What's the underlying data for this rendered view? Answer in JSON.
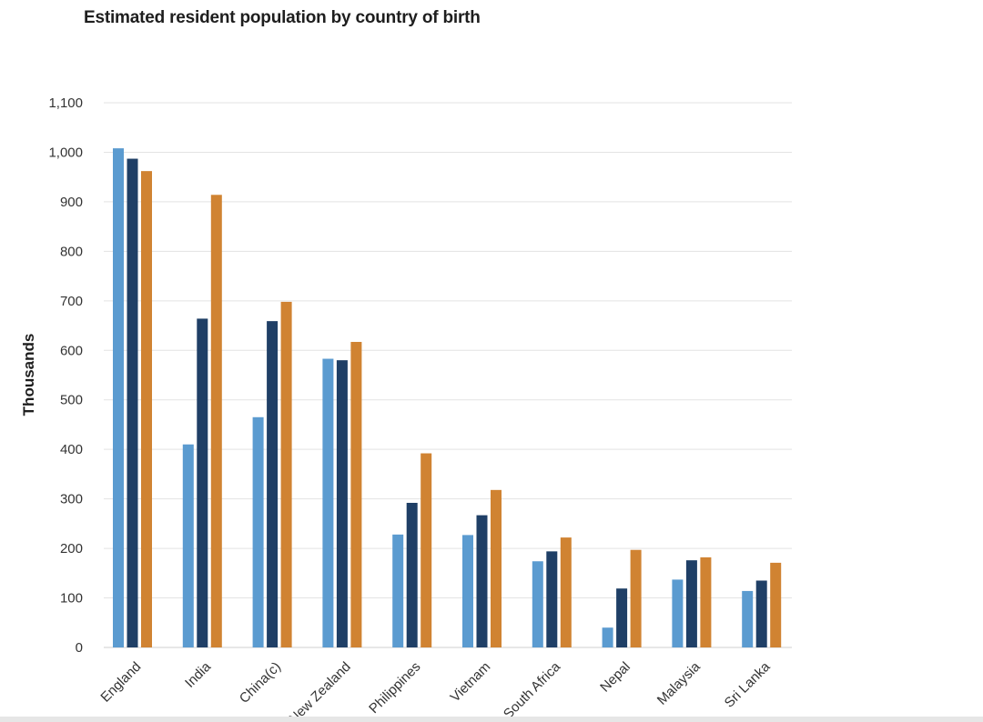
{
  "colors": {
    "series": [
      "#5b9bd0",
      "#1f3f66",
      "#d08332"
    ],
    "grid": "#e3e3e3"
  },
  "chart_data": {
    "type": "bar",
    "title": "Estimated resident population by country of birth",
    "xlabel": "",
    "ylabel": "Thousands",
    "ylim": [
      0,
      1100
    ],
    "yticks": [
      0,
      100,
      200,
      300,
      400,
      500,
      600,
      700,
      800,
      900,
      1000,
      1100
    ],
    "ytick_labels": [
      "0",
      "100",
      "200",
      "300",
      "400",
      "500",
      "600",
      "700",
      "800",
      "900",
      "1,000",
      "1,100"
    ],
    "grid": true,
    "categories": [
      "England",
      "India",
      "China(c)",
      "New Zealand",
      "Philippines",
      "Vietnam",
      "South Africa",
      "Nepal",
      "Malaysia",
      "Sri Lanka"
    ],
    "series": [
      {
        "values": [
          1008,
          410,
          465,
          583,
          228,
          227,
          174,
          40,
          137,
          114
        ]
      },
      {
        "values": [
          987,
          664,
          659,
          580,
          292,
          267,
          194,
          119,
          176,
          135
        ]
      },
      {
        "values": [
          962,
          914,
          698,
          617,
          392,
          318,
          222,
          197,
          182,
          171
        ]
      }
    ]
  }
}
